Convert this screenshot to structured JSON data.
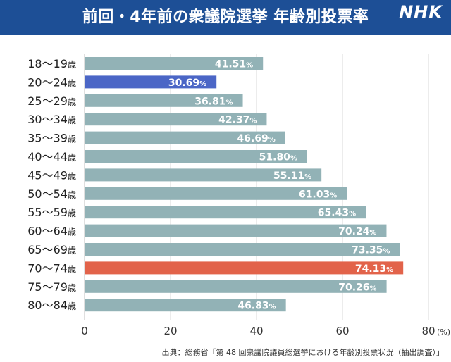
{
  "header": {
    "title": "前回・4年前の衆議院選挙 年齢別投票率",
    "logo": "NHK"
  },
  "source": "出典：総務省「第 48 回衆議院議員総選挙における年齢別投票状況（抽出調査）」",
  "colors": {
    "header_bg": "#1d4f96",
    "bar_default": "#92b2b6",
    "bar_highlight_blue": "#4b66c6",
    "bar_highlight_red": "#e2634a",
    "grid": "#d9d9d9"
  },
  "chart_data": {
    "type": "bar",
    "orientation": "horizontal",
    "title": "前回・4年前の衆議院選挙 年齢別投票率",
    "categories": [
      "18〜19歳",
      "20〜24歳",
      "25〜29歳",
      "30〜34歳",
      "35〜39歳",
      "40〜44歳",
      "45〜49歳",
      "50〜54歳",
      "55〜59歳",
      "60〜64歳",
      "65〜69歳",
      "70〜74歳",
      "75〜79歳",
      "80〜84歳"
    ],
    "values": [
      41.51,
      30.69,
      36.81,
      42.37,
      46.69,
      51.8,
      55.11,
      61.03,
      65.43,
      70.24,
      73.35,
      74.13,
      70.26,
      46.83
    ],
    "value_labels": [
      "41.51",
      "30.69",
      "36.81",
      "42.37",
      "46.69",
      "51.80",
      "55.11",
      "61.03",
      "65.43",
      "70.24",
      "73.35",
      "74.13",
      "70.26",
      "46.83"
    ],
    "value_unit": "%",
    "highlight": {
      "20〜24歳": "blue",
      "70〜74歳": "red"
    },
    "xlim": [
      0,
      80
    ],
    "x_ticks": [
      "0",
      "20",
      "40",
      "60",
      "80"
    ],
    "x_unit_label": "(%)",
    "grid": true,
    "legend": "none"
  }
}
